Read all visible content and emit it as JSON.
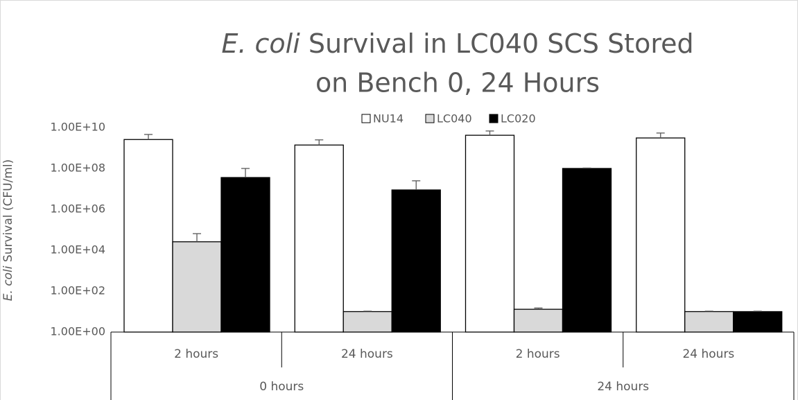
{
  "chart_data": {
    "type": "bar",
    "title": {
      "italic": "E. coli",
      "line1": "Survival in LC040 SCS Stored",
      "line2": "on Bench 0, 24 Hours"
    },
    "ylabel": {
      "italic": "E. coli",
      "rest": "Survival (CFU/ml)"
    },
    "categories": [
      "2 hours",
      "24 hours",
      "2 hours",
      "24 hours"
    ],
    "groups": [
      {
        "name": "0 hours",
        "span": 2
      },
      {
        "name": "24 hours",
        "span": 2
      }
    ],
    "log_scale": true,
    "ylim": [
      1,
      10000000000
    ],
    "yticks": [
      {
        "value": 1,
        "label": "1.00E+00"
      },
      {
        "value": 100,
        "label": "1.00E+02"
      },
      {
        "value": 10000,
        "label": "1.00E+04"
      },
      {
        "value": 1000000,
        "label": "1.00E+06"
      },
      {
        "value": 100000000,
        "label": "1.00E+08"
      },
      {
        "value": 10000000000,
        "label": "1.00E+10"
      }
    ],
    "grid": false,
    "legend": "top",
    "series": [
      {
        "name": "NU14",
        "color": "#ffffff",
        "values": [
          2600000000,
          1400000000,
          4200000000,
          3100000000
        ],
        "errors": [
          2000000000,
          1100000000,
          2600000000,
          2300000000
        ]
      },
      {
        "name": "LC040",
        "color": "#d9d9d9",
        "values": [
          26000,
          10,
          13,
          10
        ],
        "errors": [
          39000,
          0.5,
          2,
          0.5
        ]
      },
      {
        "name": "LC020",
        "color": "#000000",
        "values": [
          36000000,
          8900000,
          100000000,
          10
        ],
        "errors": [
          64000000,
          16000000,
          5000000,
          0.5
        ]
      }
    ]
  }
}
